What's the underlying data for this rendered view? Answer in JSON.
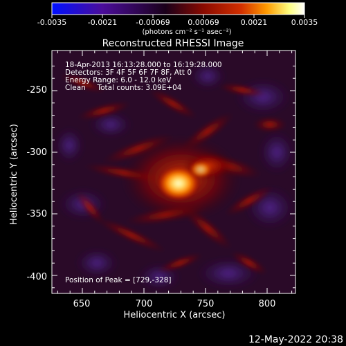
{
  "colorbar": {
    "ticks": [
      "-0.0035",
      "-0.0021",
      "-0.00069",
      "0.00069",
      "0.0021",
      "0.0035"
    ],
    "unit": "(photons cm⁻² s⁻¹ asec⁻²)",
    "colors": [
      "#0010ff",
      "#4b0d9a",
      "#1a001a",
      "#8a0a00",
      "#d33000",
      "#ff9a00",
      "#ffff80",
      "#ffffff"
    ]
  },
  "title": "Reconstructed RHESSI Image",
  "info": {
    "time": "18-Apr-2013 16:13:28.000 to 16:19:28.000",
    "detectors": "Detectors: 3F 4F 5F 6F 7F 8F, Att 0",
    "energy": "Energy Range: 6.0 - 12.0 keV",
    "clean": "Clean     Total counts: 3.09E+04",
    "peak": "Position of Peak = [729,-328]"
  },
  "axes": {
    "xlabel": "Heliocentric X (arcsec)",
    "ylabel": "Heliocentric Y (arcsec)",
    "xticks": [
      "650",
      "700",
      "750",
      "800"
    ],
    "yticks": [
      "-250",
      "-300",
      "-350",
      "-400"
    ]
  },
  "footer": {
    "date": "12-May-2022 20:38"
  }
}
